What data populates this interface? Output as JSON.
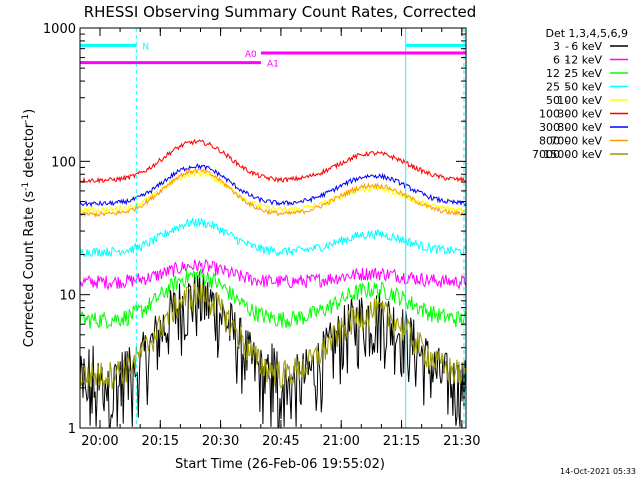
{
  "chart_data": {
    "type": "line",
    "title": "RHESSI Observing Summary Count Rates, Corrected",
    "xlabel": "Start Time (26-Feb-06 19:55:02)",
    "ylabel_main": "Corrected Count Rate (s",
    "ylabel_sup1": "-1",
    "ylabel_mid": " detector",
    "ylabel_sup2": "-1",
    "ylabel_end": ")",
    "yscale": "log",
    "ylim": [
      1,
      1000
    ],
    "xlim_minutes": [
      0,
      96
    ],
    "x_tick_labels": [
      "20:00",
      "20:15",
      "20:30",
      "20:45",
      "21:00",
      "21:15",
      "21:30"
    ],
    "x_tick_minutes": [
      4.97,
      19.97,
      34.97,
      49.97,
      64.97,
      79.97,
      94.97
    ],
    "y_tick_labels": [
      "1",
      "10",
      "100",
      "1000"
    ],
    "y_tick_values": [
      1,
      10,
      100,
      1000
    ],
    "grid": false,
    "legend_position": "right",
    "legend_header": "Det 1,3,4,5,6,9",
    "series": [
      {
        "name": "3 - 6 keV",
        "label_lo": "3",
        "label_hi": "6 keV",
        "color": "#000000",
        "base": 2.0,
        "peak": 9.5,
        "peak2": 7.0,
        "noise": 0.6
      },
      {
        "name": "6 - 12 keV",
        "label_lo": "6",
        "label_hi": "12 keV",
        "color": "#ff00ff",
        "base": 12.5,
        "peak": 16.5,
        "peak2": 14.5,
        "noise": 0.12
      },
      {
        "name": "12 - 25 keV",
        "label_lo": "12",
        "label_hi": "25 keV",
        "color": "#00ff00",
        "base": 6.5,
        "peak": 14.0,
        "peak2": 11.0,
        "noise": 0.15
      },
      {
        "name": "25 - 50 keV",
        "label_lo": "25",
        "label_hi": "50 keV",
        "color": "#00ffff",
        "base": 21.0,
        "peak": 35.0,
        "peak2": 28.5,
        "noise": 0.08
      },
      {
        "name": "50 - 100 keV",
        "label_lo": "50",
        "label_hi": "100 keV",
        "color": "#ffff00",
        "base": 43.0,
        "peak": 82.0,
        "peak2": 63.0,
        "noise": 0.05
      },
      {
        "name": "100 - 300 keV",
        "label_lo": "100",
        "label_hi": "300 keV",
        "color": "#ff0000",
        "base": 72.0,
        "peak": 140.0,
        "peak2": 115.0,
        "noise": 0.04
      },
      {
        "name": "300 - 800 keV",
        "label_lo": "300",
        "label_hi": "800 keV",
        "color": "#0000ff",
        "base": 48.0,
        "peak": 92.0,
        "peak2": 78.0,
        "noise": 0.04
      },
      {
        "name": "800 - 7000 keV",
        "label_lo": "800",
        "label_hi": "7000 keV",
        "color": "#ff9900",
        "base": 40.0,
        "peak": 85.0,
        "peak2": 66.0,
        "noise": 0.04
      },
      {
        "name": "7000 - 15000 keV",
        "label_lo": "7000",
        "label_hi": "15000 keV",
        "color": "#999900",
        "base": 2.5,
        "peak": 10.0,
        "peak2": 7.5,
        "noise": 0.25
      }
    ],
    "markers": [
      {
        "label": "N",
        "color": "#00ffff",
        "start_minutes": 0.0,
        "end_minutes": 14.0,
        "level_value": 740,
        "tag_minutes": 15.5
      },
      {
        "label": "N",
        "color": "#00ffff",
        "start_minutes": 81.0,
        "end_minutes": 96.0,
        "level_value": 740,
        "tag_minutes": null
      },
      {
        "label": "A0",
        "color": "#ff00ff",
        "start_minutes": 45.0,
        "end_minutes": 96.0,
        "level_value": 650,
        "tag_minutes": 41.0
      },
      {
        "label": "A1",
        "color": "#ff00ff",
        "start_minutes": 0.0,
        "end_minutes": 45.0,
        "level_value": 550,
        "tag_minutes": 46.5
      }
    ],
    "vertical_lines": [
      {
        "minutes": 0.0,
        "color": "#00ffff",
        "dashed": false
      },
      {
        "minutes": 14.0,
        "color": "#00ffff",
        "dashed": true
      },
      {
        "minutes": 81.0,
        "color": "#00ffff",
        "dashed": false
      },
      {
        "minutes": 95.5,
        "color": "#00ffff",
        "dashed": true
      }
    ]
  },
  "footer": {
    "timestamp": "14-Oct-2021 05:33"
  }
}
